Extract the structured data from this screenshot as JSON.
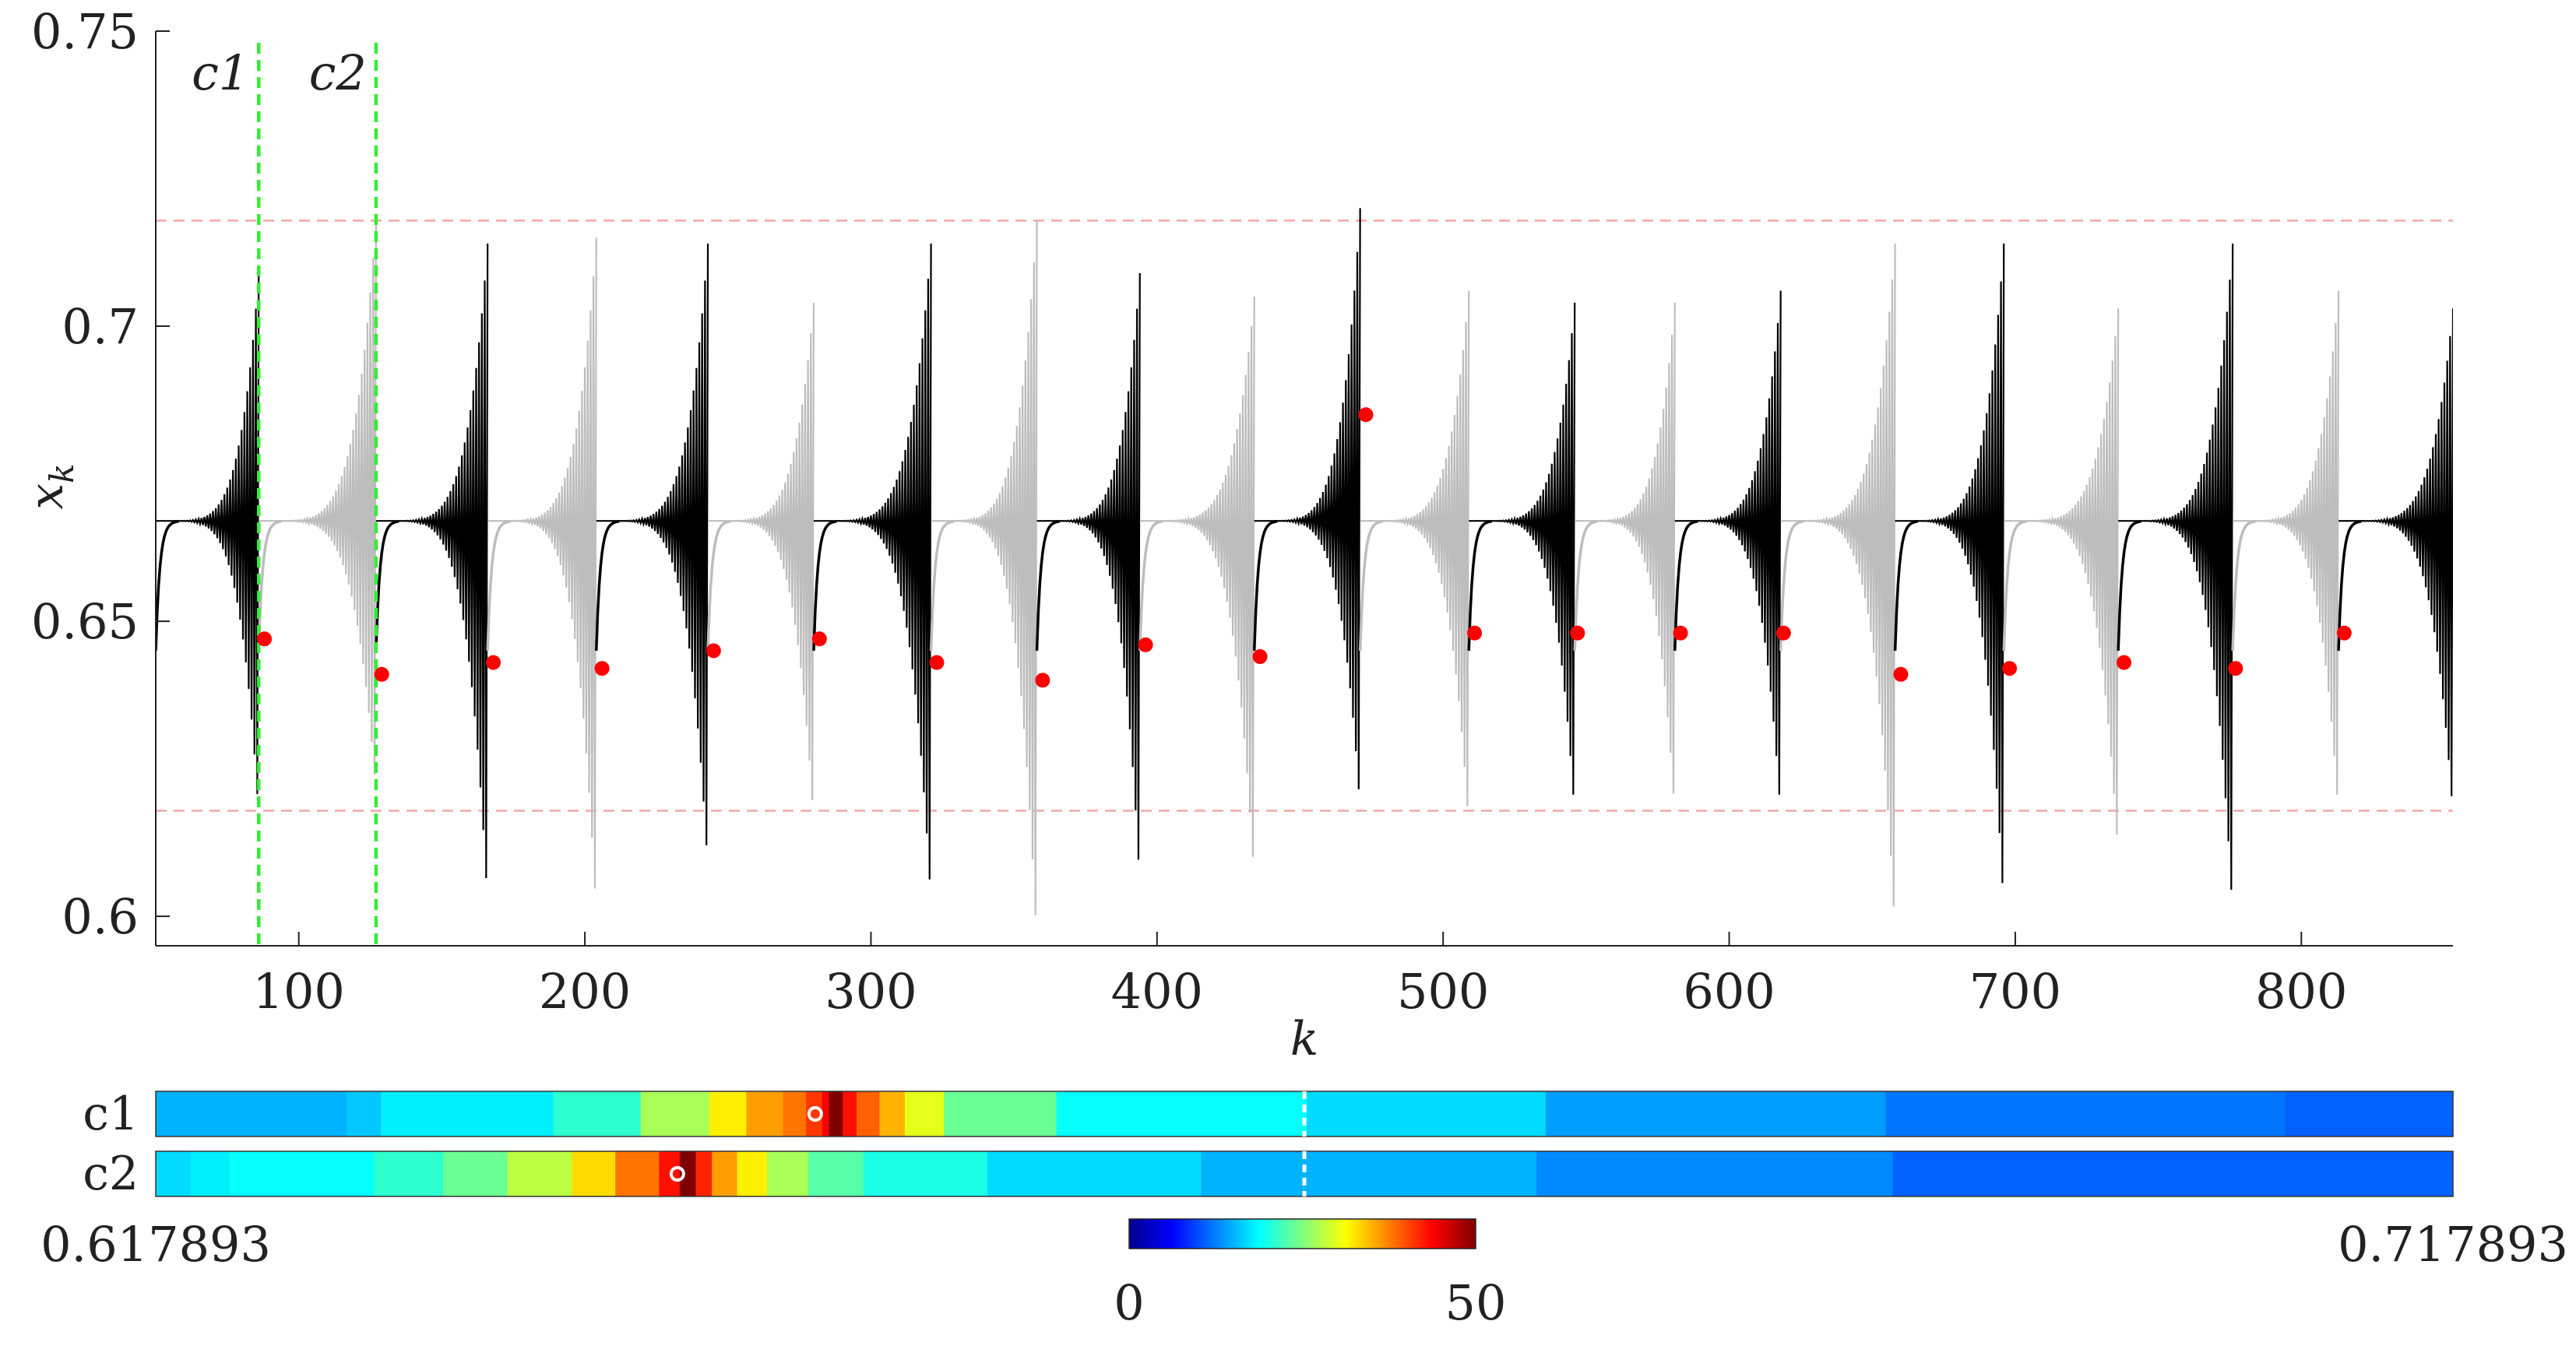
{
  "chart_data": [
    {
      "type": "line",
      "xlabel": "k",
      "ylabel": "x",
      "ylabel_sub": "k",
      "xlim": [
        50,
        853
      ],
      "ylim": [
        0.595,
        0.75
      ],
      "xticks": [
        100,
        200,
        300,
        400,
        500,
        600,
        700,
        800
      ],
      "xtick_labels": [
        "100",
        "200",
        "300",
        "400",
        "500",
        "600",
        "700",
        "800"
      ],
      "yticks": [
        0.6,
        0.65,
        0.7,
        0.75
      ],
      "ytick_labels": [
        "0.6",
        "0.65",
        "0.7",
        "0.75"
      ],
      "grid": false,
      "baseline": 0.667,
      "reference_lines": [
        0.717893,
        0.617893
      ],
      "reference_color": "#f4a6a6",
      "colors": {
        "dark": "#000000",
        "light": "#bdbdbd",
        "marker": "#ff0000",
        "cursor": "#33ee33"
      },
      "cursors": [
        {
          "label": "c1",
          "x": 86
        },
        {
          "label": "c2",
          "x": 127
        }
      ],
      "bursts": [
        {
          "start": 50,
          "end": 86,
          "shade": "dark",
          "max": 0.709,
          "min": 0.617
        },
        {
          "start": 86,
          "end": 127,
          "shade": "light",
          "max": 0.718,
          "min": 0.621
        },
        {
          "start": 127,
          "end": 166,
          "shade": "dark",
          "max": 0.714,
          "min": 0.602
        },
        {
          "start": 166,
          "end": 204,
          "shade": "light",
          "max": 0.715,
          "min": 0.6
        },
        {
          "start": 204,
          "end": 243,
          "shade": "dark",
          "max": 0.714,
          "min": 0.608
        },
        {
          "start": 243,
          "end": 280,
          "shade": "light",
          "max": 0.704,
          "min": 0.616
        },
        {
          "start": 280,
          "end": 321,
          "shade": "dark",
          "max": 0.714,
          "min": 0.602
        },
        {
          "start": 321,
          "end": 358,
          "shade": "light",
          "max": 0.718,
          "min": 0.595
        },
        {
          "start": 358,
          "end": 394,
          "shade": "dark",
          "max": 0.709,
          "min": 0.605
        },
        {
          "start": 394,
          "end": 434,
          "shade": "light",
          "max": 0.705,
          "min": 0.606
        },
        {
          "start": 434,
          "end": 471,
          "shade": "dark",
          "max": 0.72,
          "min": 0.618
        },
        {
          "start": 471,
          "end": 509,
          "shade": "light",
          "max": 0.706,
          "min": 0.615
        },
        {
          "start": 509,
          "end": 546,
          "shade": "dark",
          "max": 0.704,
          "min": 0.617
        },
        {
          "start": 546,
          "end": 581,
          "shade": "light",
          "max": 0.704,
          "min": 0.617
        },
        {
          "start": 581,
          "end": 618,
          "shade": "dark",
          "max": 0.706,
          "min": 0.617
        },
        {
          "start": 618,
          "end": 658,
          "shade": "light",
          "max": 0.714,
          "min": 0.597
        },
        {
          "start": 658,
          "end": 696,
          "shade": "dark",
          "max": 0.714,
          "min": 0.601
        },
        {
          "start": 696,
          "end": 736,
          "shade": "light",
          "max": 0.703,
          "min": 0.61
        },
        {
          "start": 736,
          "end": 776,
          "shade": "dark",
          "max": 0.714,
          "min": 0.6
        },
        {
          "start": 776,
          "end": 813,
          "shade": "light",
          "max": 0.706,
          "min": 0.617
        },
        {
          "start": 813,
          "end": 853,
          "shade": "dark",
          "max": 0.703,
          "min": 0.617
        }
      ],
      "markers": [
        {
          "x": 88,
          "y": 0.647
        },
        {
          "x": 129,
          "y": 0.641
        },
        {
          "x": 168,
          "y": 0.643
        },
        {
          "x": 206,
          "y": 0.642
        },
        {
          "x": 245,
          "y": 0.645
        },
        {
          "x": 282,
          "y": 0.647
        },
        {
          "x": 323,
          "y": 0.643
        },
        {
          "x": 360,
          "y": 0.64
        },
        {
          "x": 396,
          "y": 0.646
        },
        {
          "x": 436,
          "y": 0.644
        },
        {
          "x": 473,
          "y": 0.685
        },
        {
          "x": 511,
          "y": 0.648
        },
        {
          "x": 547,
          "y": 0.648
        },
        {
          "x": 583,
          "y": 0.648
        },
        {
          "x": 619,
          "y": 0.648
        },
        {
          "x": 660,
          "y": 0.641
        },
        {
          "x": 698,
          "y": 0.642
        },
        {
          "x": 738,
          "y": 0.643
        },
        {
          "x": 777,
          "y": 0.642
        },
        {
          "x": 815,
          "y": 0.648
        }
      ]
    },
    {
      "type": "heatmap",
      "rows": [
        "c1",
        "c2"
      ],
      "xlim": [
        0.617893,
        0.717893
      ],
      "xlim_labels": [
        "0.617893",
        "0.717893"
      ],
      "clim": [
        0,
        50
      ],
      "colorbar_labels": [
        "0",
        "50"
      ],
      "colormap": "jet",
      "midline": 0.667893,
      "row_values": [
        {
          "name": "c1",
          "breaks": [
            0.617893,
            0.6262,
            0.6277,
            0.6352,
            0.639,
            0.642,
            0.6436,
            0.6452,
            0.6462,
            0.6469,
            0.6472,
            0.6478,
            0.6484,
            0.6494,
            0.6505,
            0.6522,
            0.6571,
            0.668,
            0.6784,
            0.6932,
            0.7106,
            0.717893
          ],
          "values": [
            15,
            16,
            18,
            21,
            27,
            32,
            36,
            38,
            41,
            44,
            50,
            43,
            39,
            35,
            30,
            24,
            19,
            17,
            14,
            12,
            11
          ],
          "marker": 0.6466
        },
        {
          "name": "c2",
          "breaks": [
            0.617893,
            0.6194,
            0.6211,
            0.6274,
            0.6304,
            0.6332,
            0.636,
            0.6379,
            0.6398,
            0.6407,
            0.6414,
            0.6421,
            0.6432,
            0.6445,
            0.6463,
            0.6487,
            0.6541,
            0.6634,
            0.678,
            0.6935,
            0.717893
          ],
          "values": [
            17,
            18,
            19,
            21,
            24,
            28,
            33,
            38,
            43,
            50,
            42,
            36,
            32,
            27,
            23,
            20,
            17,
            15,
            13,
            11
          ],
          "marker": 0.6406
        }
      ]
    }
  ]
}
